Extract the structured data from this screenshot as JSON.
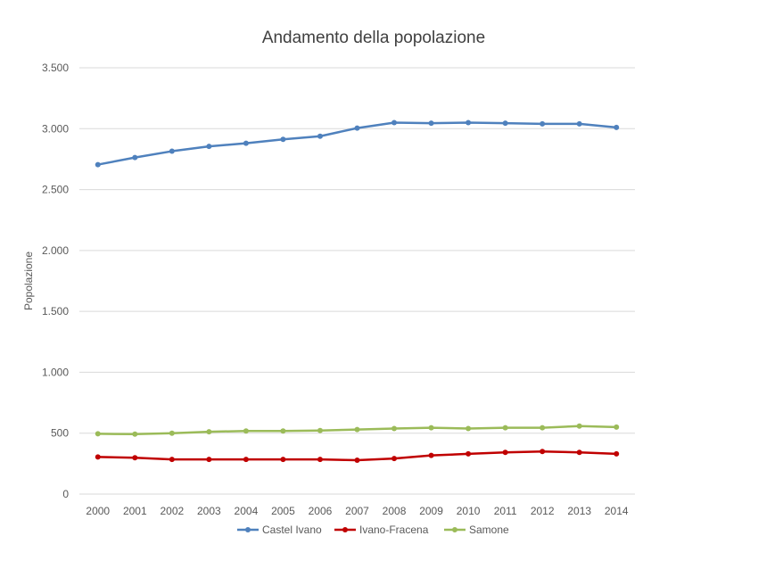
{
  "chart_data": {
    "type": "line",
    "title": "Andamento della popolazione",
    "xlabel": "",
    "ylabel": "Popolazione",
    "ylim": [
      0,
      3500
    ],
    "yticks": [
      0,
      500,
      1000,
      1500,
      2000,
      2500,
      3000,
      3500
    ],
    "ytick_labels": [
      "0",
      "500",
      "1.000",
      "1.500",
      "2.000",
      "2.500",
      "3.000",
      "3.500"
    ],
    "categories": [
      "2000",
      "2001",
      "2002",
      "2003",
      "2004",
      "2005",
      "2006",
      "2007",
      "2008",
      "2009",
      "2010",
      "2011",
      "2012",
      "2013",
      "2014"
    ],
    "grid": true,
    "legend_position": "bottom",
    "series": [
      {
        "name": "Castel Ivano",
        "color": "#4f81bd",
        "values": [
          2705,
          2763,
          2815,
          2855,
          2880,
          2912,
          2938,
          3005,
          3050,
          3045,
          3050,
          3045,
          3040,
          3040,
          3010
        ]
      },
      {
        "name": "Ivano-Fracena",
        "color": "#c00000",
        "values": [
          305,
          298,
          285,
          285,
          285,
          285,
          285,
          278,
          292,
          318,
          330,
          342,
          350,
          342,
          330
        ]
      },
      {
        "name": "Samone",
        "color": "#9bbb59",
        "values": [
          495,
          492,
          500,
          512,
          518,
          518,
          522,
          530,
          538,
          545,
          538,
          545,
          545,
          558,
          550
        ]
      }
    ]
  }
}
